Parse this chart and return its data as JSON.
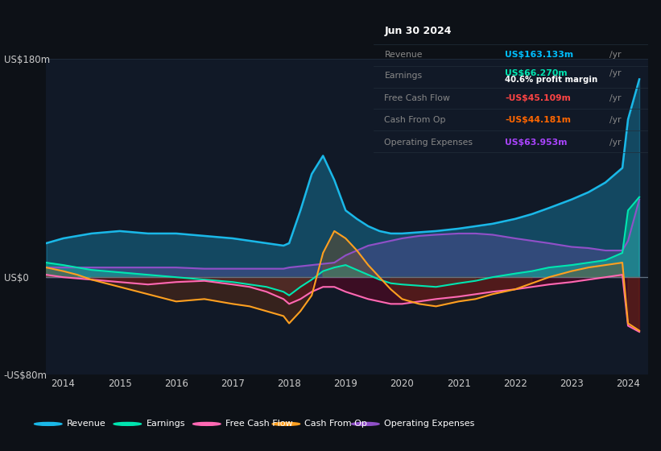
{
  "bg_color": "#0d1117",
  "plot_bg_color": "#111927",
  "grid_color": "#2a3a4a",
  "zero_line_color": "#6a7a8a",
  "title_box": {
    "date": "Jun 30 2024",
    "revenue_label": "Revenue",
    "revenue_value": "US$163.133m",
    "revenue_suffix": " /yr",
    "revenue_color": "#00bfff",
    "earnings_label": "Earnings",
    "earnings_value": "US$66.270m",
    "earnings_suffix": " /yr",
    "earnings_color": "#00e5b0",
    "margin_text": "40.6% profit margin",
    "fcf_label": "Free Cash Flow",
    "fcf_value": "-US$45.109m",
    "fcf_suffix": " /yr",
    "fcf_color": "#ff4444",
    "cashop_label": "Cash From Op",
    "cashop_value": "-US$44.181m",
    "cashop_suffix": " /yr",
    "cashop_color": "#ff6600",
    "opex_label": "Operating Expenses",
    "opex_value": "US$63.953m",
    "opex_suffix": " /yr",
    "opex_color": "#aa44ff"
  },
  "ylim": [
    -80,
    180
  ],
  "ytick_vals": [
    -80,
    0,
    180
  ],
  "ytick_labels": [
    "-US$80m",
    "US$0",
    "US$180m"
  ],
  "colors": {
    "revenue": "#1ab8e8",
    "earnings": "#00e5b0",
    "fcf": "#ff69b4",
    "cashop": "#ffa020",
    "opex": "#9050c8"
  },
  "legend": [
    {
      "label": "Revenue",
      "color": "#1ab8e8"
    },
    {
      "label": "Earnings",
      "color": "#00e5b0"
    },
    {
      "label": "Free Cash Flow",
      "color": "#ff69b4"
    },
    {
      "label": "Cash From Op",
      "color": "#ffa020"
    },
    {
      "label": "Operating Expenses",
      "color": "#9050c8"
    }
  ],
  "years": [
    2013.7,
    2014.0,
    2014.25,
    2014.5,
    2015.0,
    2015.5,
    2016.0,
    2016.5,
    2017.0,
    2017.3,
    2017.6,
    2017.9,
    2018.0,
    2018.2,
    2018.4,
    2018.6,
    2018.8,
    2019.0,
    2019.2,
    2019.4,
    2019.6,
    2019.8,
    2020.0,
    2020.3,
    2020.6,
    2021.0,
    2021.3,
    2021.6,
    2022.0,
    2022.3,
    2022.6,
    2023.0,
    2023.3,
    2023.6,
    2023.9,
    2024.0,
    2024.2
  ],
  "revenue": [
    28,
    32,
    34,
    36,
    38,
    36,
    36,
    34,
    32,
    30,
    28,
    26,
    28,
    55,
    85,
    100,
    80,
    55,
    48,
    42,
    38,
    36,
    36,
    37,
    38,
    40,
    42,
    44,
    48,
    52,
    57,
    64,
    70,
    78,
    90,
    130,
    163
  ],
  "earnings": [
    12,
    10,
    8,
    6,
    4,
    2,
    0,
    -2,
    -4,
    -6,
    -8,
    -12,
    -15,
    -8,
    -2,
    5,
    8,
    10,
    6,
    2,
    -2,
    -5,
    -6,
    -7,
    -8,
    -5,
    -3,
    0,
    3,
    5,
    8,
    10,
    12,
    14,
    20,
    55,
    66
  ],
  "fcf": [
    2,
    0,
    -1,
    -2,
    -4,
    -6,
    -4,
    -3,
    -6,
    -8,
    -12,
    -18,
    -22,
    -18,
    -12,
    -8,
    -8,
    -12,
    -15,
    -18,
    -20,
    -22,
    -22,
    -20,
    -18,
    -16,
    -14,
    -12,
    -10,
    -8,
    -6,
    -4,
    -2,
    0,
    2,
    -40,
    -45
  ],
  "cashop": [
    8,
    5,
    2,
    -2,
    -8,
    -14,
    -20,
    -18,
    -22,
    -24,
    -28,
    -32,
    -38,
    -28,
    -15,
    20,
    38,
    32,
    22,
    10,
    0,
    -10,
    -18,
    -22,
    -24,
    -20,
    -18,
    -14,
    -10,
    -5,
    0,
    5,
    8,
    10,
    12,
    -38,
    -44
  ],
  "opex": [
    8,
    8,
    8,
    8,
    8,
    8,
    8,
    7,
    7,
    7,
    7,
    7,
    8,
    9,
    10,
    11,
    12,
    18,
    22,
    26,
    28,
    30,
    32,
    34,
    35,
    36,
    36,
    35,
    32,
    30,
    28,
    25,
    24,
    22,
    22,
    30,
    64
  ]
}
